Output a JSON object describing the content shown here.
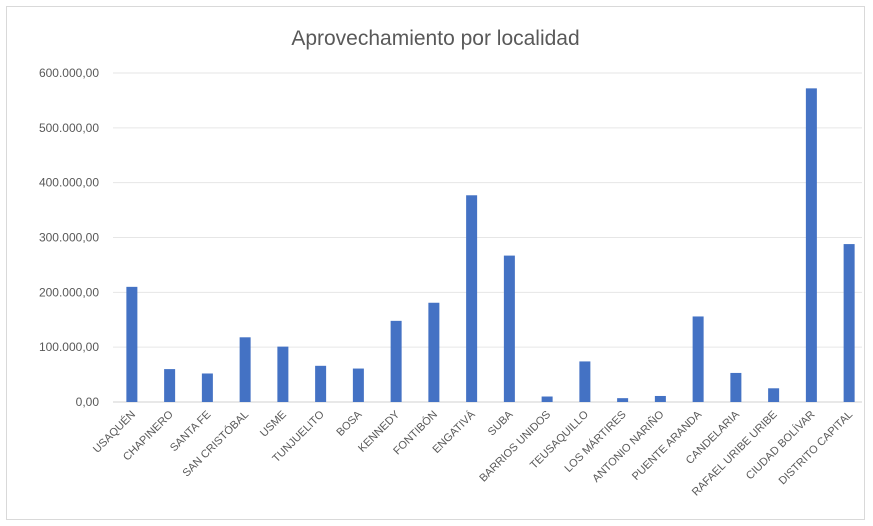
{
  "chart_data": {
    "type": "bar",
    "title": "Aprovechamiento por localidad",
    "xlabel": "",
    "ylabel": "",
    "ylim": [
      0,
      600000
    ],
    "yticks": [
      "0,00",
      "100.000,00",
      "200.000,00",
      "300.000,00",
      "400.000,00",
      "500.000,00",
      "600.000,00"
    ],
    "grid": true,
    "bar_color": "#4472c4",
    "categories": [
      "USAQUÉN",
      "CHAPINERO",
      "SANTA FE",
      "SAN CRISTÓBAL",
      "USME",
      "TUNJUELITO",
      "BOSA",
      "KENNEDY",
      "FONTIBÓN",
      "ENGATIVÁ",
      "SUBA",
      "BARRIOS UNIDOS",
      "TEUSAQUILLO",
      "LOS MÁRTIRES",
      "ANTONIO NARIÑO",
      "PUENTE ARANDA",
      "CANDELARIA",
      "RAFAEL URIBE URIBE",
      "CIUDAD BOLÍVAR",
      "DISTRITO CAPITAL"
    ],
    "values": [
      210000,
      60000,
      52000,
      118000,
      101000,
      66000,
      61000,
      148000,
      181000,
      377000,
      267000,
      10000,
      74000,
      7000,
      11000,
      156000,
      53000,
      25000,
      572000,
      288000
    ]
  }
}
